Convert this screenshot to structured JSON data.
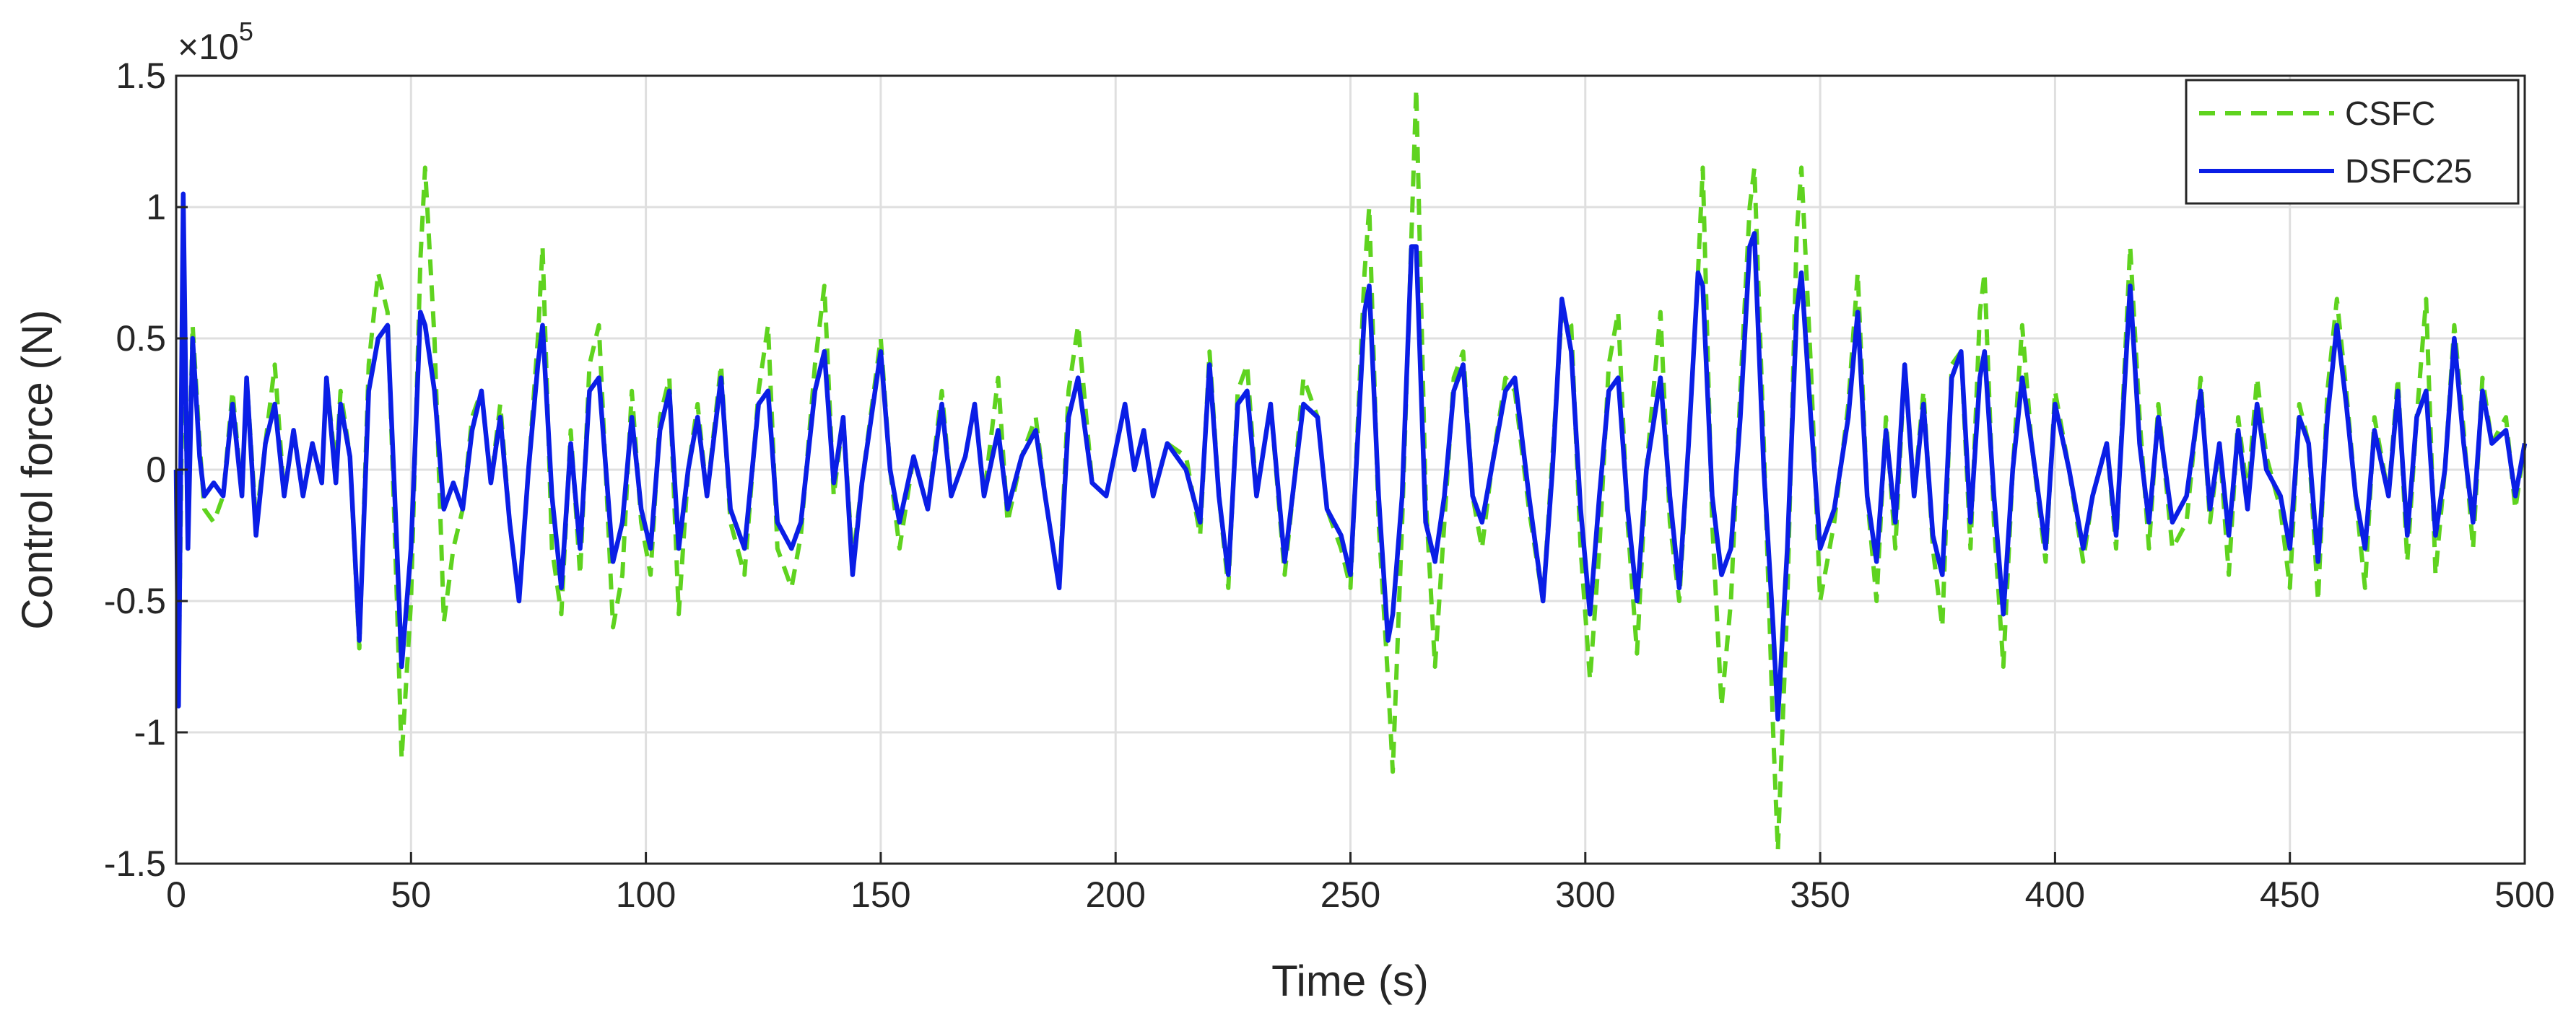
{
  "chart_data": {
    "type": "line",
    "xlabel": "Time (s)",
    "ylabel": "Control force (N)",
    "y_multiplier": {
      "base": "×10",
      "exponent": "5"
    },
    "xlim": [
      0,
      500
    ],
    "xticks": [
      0,
      50,
      100,
      150,
      200,
      250,
      300,
      350,
      400,
      450,
      500
    ],
    "ylim": [
      -1.5,
      1.5
    ],
    "yticks": [
      -1.5,
      -1,
      -0.5,
      0,
      0.5,
      1,
      1.5
    ],
    "grid": true,
    "legend_location": "northeast",
    "x": [
      0,
      0.5,
      1.5,
      2.5,
      3.5,
      5,
      6,
      8,
      10,
      12,
      14,
      15,
      17,
      19,
      21,
      23,
      25,
      27,
      29,
      31,
      32,
      34,
      35,
      37,
      39,
      41,
      43,
      45,
      47,
      48,
      50,
      52,
      53,
      55,
      57,
      59,
      61,
      63,
      65,
      67,
      69,
      71,
      73,
      75,
      77,
      78,
      80,
      82,
      84,
      86,
      88,
      90,
      93,
      95,
      97,
      99,
      101,
      103,
      105,
      107,
      109,
      111,
      113,
      116,
      118,
      121,
      124,
      126,
      128,
      131,
      133,
      136,
      138,
      140,
      142,
      144,
      146,
      150,
      152,
      154,
      157,
      160,
      163,
      165,
      168,
      170,
      172,
      175,
      177,
      180,
      183,
      185,
      188,
      190,
      192,
      195,
      198,
      202,
      204,
      206,
      208,
      211,
      215,
      218,
      220,
      222,
      224,
      226,
      228,
      230,
      233,
      236,
      238,
      240,
      243,
      245,
      248,
      250,
      253,
      254,
      256,
      258,
      259,
      261,
      263,
      264,
      266,
      268,
      270,
      272,
      274,
      276,
      278,
      280,
      283,
      285,
      288,
      291,
      293,
      295,
      297,
      299,
      301,
      303,
      305,
      307,
      309,
      311,
      313,
      316,
      318,
      320,
      322,
      324,
      325,
      327,
      329,
      331,
      333,
      335,
      336,
      338,
      340,
      341,
      343,
      345,
      346,
      348,
      350,
      353,
      356,
      358,
      360,
      362,
      364,
      366,
      368,
      370,
      372,
      374,
      376,
      378,
      380,
      382,
      384,
      385,
      387,
      389,
      391,
      393,
      395,
      398,
      400,
      403,
      406,
      408,
      411,
      413,
      416,
      418,
      420,
      422,
      425,
      428,
      431,
      433,
      435,
      437,
      439,
      441,
      443,
      445,
      448,
      450,
      452,
      454,
      456,
      458,
      460,
      462,
      464,
      466,
      468,
      471,
      473,
      475,
      477,
      479,
      481,
      483,
      485,
      487,
      489,
      491,
      493,
      496,
      498,
      500
    ],
    "series": [
      {
        "name": "CSFC",
        "color": "#5fd31f",
        "linestyle": "dashed",
        "values": [
          0,
          -0.85,
          0.6,
          -0.2,
          0.55,
          0.1,
          -0.15,
          -0.2,
          -0.1,
          0.3,
          -0.1,
          0.35,
          -0.2,
          0.1,
          0.4,
          -0.1,
          0.15,
          -0.1,
          0.1,
          -0.05,
          0.35,
          0,
          0.3,
          0.05,
          -0.68,
          0.4,
          0.75,
          0.6,
          -0.5,
          -1.1,
          -0.5,
          0.8,
          1.15,
          0.5,
          -0.58,
          -0.3,
          -0.15,
          0.2,
          0.3,
          -0.05,
          0.25,
          -0.2,
          -0.5,
          0,
          0.5,
          0.85,
          -0.3,
          -0.55,
          0.15,
          -0.4,
          0.4,
          0.55,
          -0.6,
          -0.4,
          0.3,
          -0.2,
          -0.4,
          0.2,
          0.35,
          -0.55,
          0,
          0.25,
          -0.1,
          0.4,
          -0.2,
          -0.4,
          0.3,
          0.55,
          -0.3,
          -0.45,
          -0.25,
          0.4,
          0.7,
          -0.1,
          0.2,
          -0.35,
          -0.05,
          0.5,
          0,
          -0.3,
          0.05,
          -0.15,
          0.3,
          -0.1,
          0.05,
          0.25,
          -0.1,
          0.35,
          -0.2,
          0.05,
          0.2,
          -0.1,
          -0.45,
          0.3,
          0.55,
          -0.05,
          -0.1,
          0.25,
          0,
          0.15,
          -0.1,
          0.1,
          0.05,
          -0.25,
          0.45,
          -0.1,
          -0.45,
          0.3,
          0.4,
          -0.1,
          0.25,
          -0.4,
          -0.05,
          0.35,
          0.2,
          -0.15,
          -0.3,
          -0.45,
          0.75,
          1,
          -0.2,
          -0.8,
          -1.15,
          -0.2,
          0.9,
          1.45,
          -0.1,
          -0.75,
          -0.2,
          0.35,
          0.45,
          -0.1,
          -0.3,
          0,
          0.35,
          0.3,
          -0.15,
          -0.5,
          0.05,
          0.6,
          0.55,
          -0.3,
          -0.8,
          -0.3,
          0.4,
          0.6,
          -0.2,
          -0.7,
          0,
          0.6,
          -0.2,
          -0.5,
          0.1,
          0.75,
          1.15,
          -0.2,
          -0.9,
          -0.5,
          0.3,
          1,
          1.15,
          0.1,
          -1,
          -1.45,
          -0.5,
          0.9,
          1.15,
          0.4,
          -0.5,
          -0.2,
          0.25,
          0.75,
          -0.1,
          -0.5,
          0.2,
          -0.3,
          0.4,
          -0.1,
          0.3,
          -0.3,
          -0.6,
          0.4,
          0.45,
          -0.3,
          0.6,
          0.75,
          -0.2,
          -0.75,
          0,
          0.55,
          0.1,
          -0.35,
          0.3,
          0,
          -0.35,
          -0.1,
          0.1,
          -0.3,
          0.85,
          0.2,
          -0.3,
          0.25,
          -0.3,
          -0.2,
          0.35,
          -0.2,
          0.1,
          -0.4,
          0.2,
          -0.1,
          0.35,
          0.05,
          -0.15,
          -0.45,
          0.25,
          0.1,
          -0.5,
          0.3,
          0.65,
          0.3,
          -0.1,
          -0.45,
          0.2,
          -0.1,
          0.35,
          -0.35,
          0.2,
          0.65,
          -0.4,
          0,
          0.55,
          0.15,
          -0.3,
          0.35,
          0.1,
          0.2,
          -0.15,
          0.1
        ]
      },
      {
        "name": "DSFC25",
        "color": "#0a1ee6",
        "linestyle": "solid",
        "values": [
          0,
          -0.9,
          1.05,
          -0.3,
          0.5,
          0.05,
          -0.1,
          -0.05,
          -0.1,
          0.25,
          -0.1,
          0.35,
          -0.25,
          0.1,
          0.25,
          -0.1,
          0.15,
          -0.1,
          0.1,
          -0.05,
          0.35,
          -0.05,
          0.25,
          0.05,
          -0.65,
          0.3,
          0.5,
          0.55,
          -0.3,
          -0.75,
          -0.3,
          0.6,
          0.55,
          0.3,
          -0.15,
          -0.05,
          -0.15,
          0.15,
          0.3,
          -0.05,
          0.2,
          -0.2,
          -0.5,
          0,
          0.4,
          0.55,
          -0.1,
          -0.45,
          0.1,
          -0.3,
          0.3,
          0.35,
          -0.35,
          -0.2,
          0.2,
          -0.15,
          -0.3,
          0.15,
          0.3,
          -0.3,
          0,
          0.2,
          -0.1,
          0.35,
          -0.15,
          -0.3,
          0.25,
          0.3,
          -0.2,
          -0.3,
          -0.2,
          0.3,
          0.45,
          -0.05,
          0.2,
          -0.4,
          -0.05,
          0.45,
          0,
          -0.2,
          0.05,
          -0.15,
          0.25,
          -0.1,
          0.05,
          0.25,
          -0.1,
          0.15,
          -0.15,
          0.05,
          0.15,
          -0.1,
          -0.45,
          0.2,
          0.35,
          -0.05,
          -0.1,
          0.25,
          0,
          0.15,
          -0.1,
          0.1,
          0,
          -0.2,
          0.4,
          -0.1,
          -0.4,
          0.25,
          0.3,
          -0.1,
          0.25,
          -0.35,
          -0.05,
          0.25,
          0.2,
          -0.15,
          -0.25,
          -0.4,
          0.6,
          0.7,
          -0.1,
          -0.65,
          -0.55,
          -0.1,
          0.85,
          0.85,
          -0.2,
          -0.35,
          -0.1,
          0.3,
          0.4,
          -0.1,
          -0.2,
          0,
          0.3,
          0.35,
          -0.1,
          -0.5,
          0,
          0.65,
          0.45,
          -0.15,
          -0.55,
          -0.1,
          0.3,
          0.35,
          -0.15,
          -0.5,
          0,
          0.35,
          -0.1,
          -0.45,
          0.1,
          0.75,
          0.7,
          -0.1,
          -0.4,
          -0.3,
          0.2,
          0.85,
          0.9,
          0,
          -0.6,
          -0.95,
          -0.3,
          0.6,
          0.75,
          0.2,
          -0.3,
          -0.15,
          0.2,
          0.6,
          -0.1,
          -0.35,
          0.15,
          -0.2,
          0.4,
          -0.1,
          0.25,
          -0.25,
          -0.4,
          0.35,
          0.45,
          -0.2,
          0.35,
          0.45,
          -0.1,
          -0.55,
          0,
          0.35,
          0.1,
          -0.3,
          0.25,
          0,
          -0.3,
          -0.1,
          0.1,
          -0.25,
          0.7,
          0.1,
          -0.2,
          0.2,
          -0.2,
          -0.1,
          0.3,
          -0.15,
          0.1,
          -0.25,
          0.15,
          -0.15,
          0.25,
          0,
          -0.1,
          -0.3,
          0.2,
          0.1,
          -0.35,
          0.2,
          0.55,
          0.25,
          -0.1,
          -0.3,
          0.15,
          -0.1,
          0.3,
          -0.25,
          0.2,
          0.3,
          -0.25,
          0,
          0.5,
          0.1,
          -0.2,
          0.3,
          0.1,
          0.15,
          -0.1,
          0.1
        ]
      }
    ]
  }
}
